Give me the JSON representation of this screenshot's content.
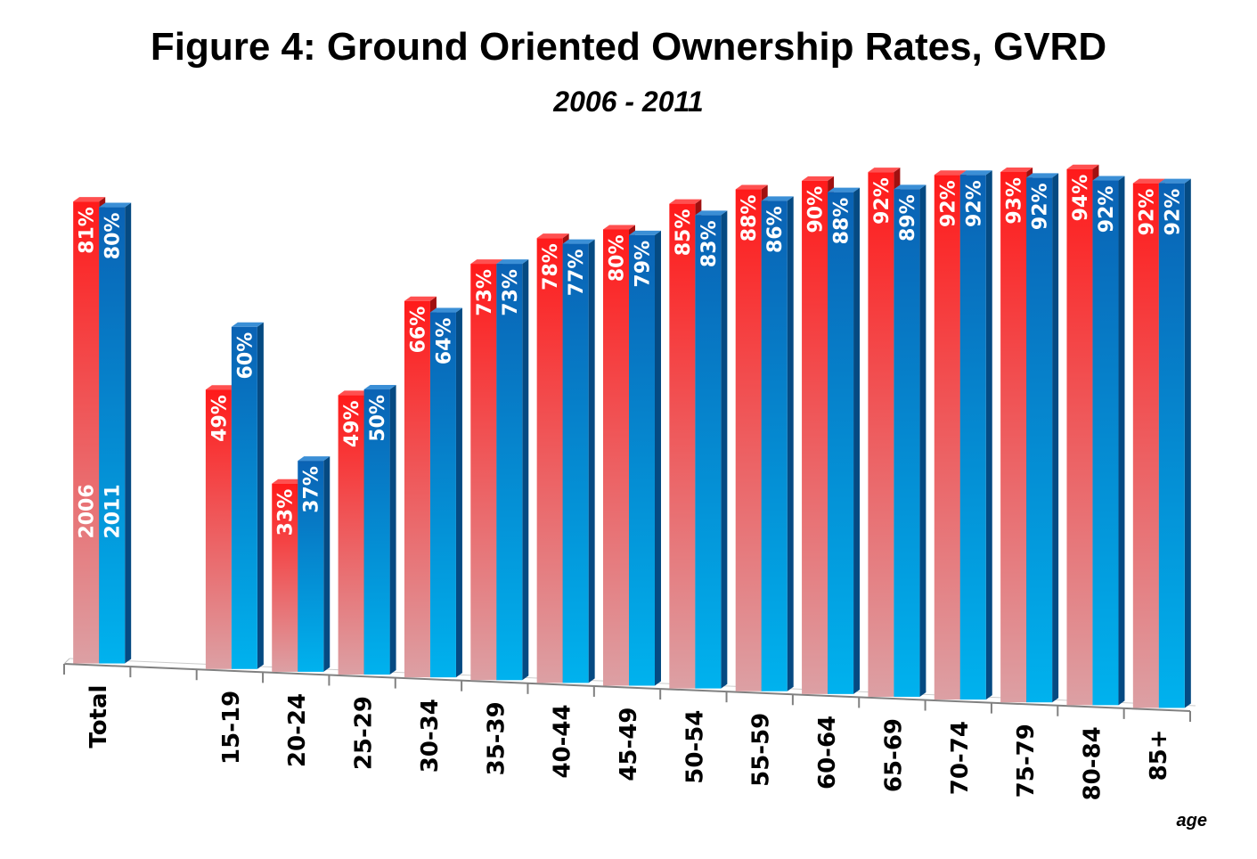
{
  "chart_data": {
    "type": "bar",
    "title": "Figure 4: Ground Oriented Ownership Rates, GVRD",
    "subtitle": "2006 - 2011",
    "xlabel": "age",
    "ylabel": "",
    "ylim": [
      0,
      100
    ],
    "categories": [
      "Total",
      "",
      "15-19",
      "20-24",
      "25-29",
      "30-34",
      "35-39",
      "40-44",
      "45-49",
      "50-54",
      "55-59",
      "60-64",
      "65-69",
      "70-74",
      "75-79",
      "80-84",
      "85+"
    ],
    "series": [
      {
        "name": "2006",
        "color": "#ff2020",
        "values": [
          81,
          null,
          49,
          33,
          49,
          66,
          73,
          78,
          80,
          85,
          88,
          90,
          92,
          92,
          93,
          94,
          92
        ],
        "labels": [
          "81%",
          "",
          "49%",
          "33%",
          "49%",
          "66%",
          "73%",
          "78%",
          "80%",
          "85%",
          "88%",
          "90%",
          "92%",
          "92%",
          "93%",
          "94%",
          "92%"
        ]
      },
      {
        "name": "2011",
        "color": "#0a6fc0",
        "values": [
          80,
          null,
          60,
          37,
          50,
          64,
          73,
          77,
          79,
          83,
          86,
          88,
          89,
          92,
          92,
          92,
          92
        ],
        "labels": [
          "80%",
          "",
          "60%",
          "37%",
          "50%",
          "64%",
          "73%",
          "77%",
          "79%",
          "83%",
          "86%",
          "88%",
          "89%",
          "92%",
          "92%",
          "92%",
          "92%"
        ]
      }
    ],
    "grid": false,
    "legend": "inline on Total bars"
  }
}
